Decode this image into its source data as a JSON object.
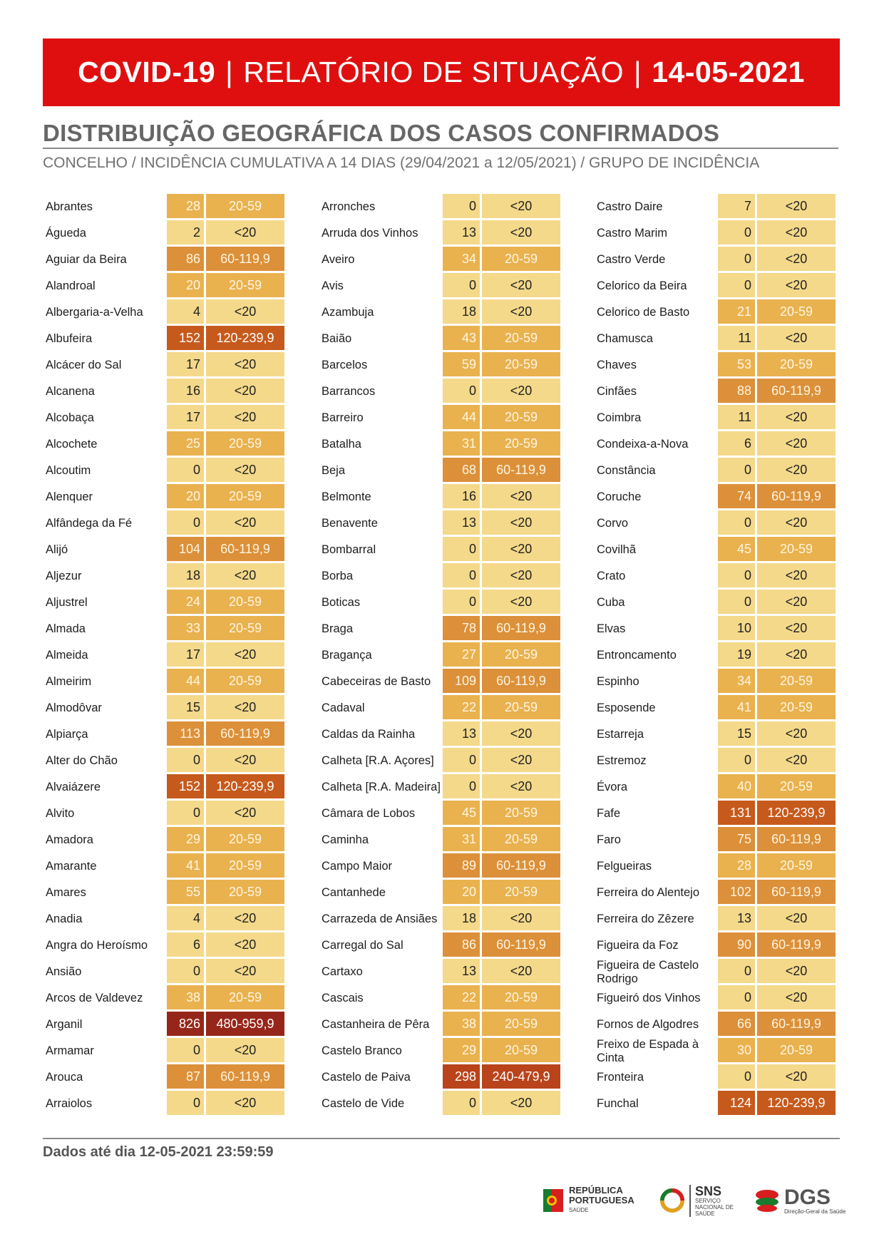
{
  "header": {
    "title_left": "COVID-19",
    "separator": "|",
    "title_mid": "RELATÓRIO DE SITUAÇÃO",
    "title_date": "14-05-2021"
  },
  "section": {
    "title": "DISTRIBUIÇÃO GEOGRÁFICA DOS CASOS CONFIRMADOS",
    "subtitle": "CONCELHO / INCIDÊNCIA CUMULATIVA A 14 DIAS (29/04/2021 a 12/05/2021) / GRUPO DE INCIDÊNCIA"
  },
  "colors": {
    "<20": "#f4d98a",
    "20-59": "#e9b24f",
    "60-119,9": "#dc903a",
    "120-239,9": "#c65a1c",
    "240-479,9": "#b9431a",
    "480-959,9": "#96261a"
  },
  "columns": [
    [
      [
        "Abrantes",
        "28",
        "20-59"
      ],
      [
        "Águeda",
        "2",
        "<20"
      ],
      [
        "Aguiar da Beira",
        "86",
        "60-119,9"
      ],
      [
        "Alandroal",
        "20",
        "20-59"
      ],
      [
        "Albergaria-a-Velha",
        "4",
        "<20"
      ],
      [
        "Albufeira",
        "152",
        "120-239,9"
      ],
      [
        "Alcácer do Sal",
        "17",
        "<20"
      ],
      [
        "Alcanena",
        "16",
        "<20"
      ],
      [
        "Alcobaça",
        "17",
        "<20"
      ],
      [
        "Alcochete",
        "25",
        "20-59"
      ],
      [
        "Alcoutim",
        "0",
        "<20"
      ],
      [
        "Alenquer",
        "20",
        "20-59"
      ],
      [
        "Alfândega da Fé",
        "0",
        "<20"
      ],
      [
        "Alijó",
        "104",
        "60-119,9"
      ],
      [
        "Aljezur",
        "18",
        "<20"
      ],
      [
        "Aljustrel",
        "24",
        "20-59"
      ],
      [
        "Almada",
        "33",
        "20-59"
      ],
      [
        "Almeida",
        "17",
        "<20"
      ],
      [
        "Almeirim",
        "44",
        "20-59"
      ],
      [
        "Almodôvar",
        "15",
        "<20"
      ],
      [
        "Alpiarça",
        "113",
        "60-119,9"
      ],
      [
        "Alter do Chão",
        "0",
        "<20"
      ],
      [
        "Alvaiázere",
        "152",
        "120-239,9"
      ],
      [
        "Alvito",
        "0",
        "<20"
      ],
      [
        "Amadora",
        "29",
        "20-59"
      ],
      [
        "Amarante",
        "41",
        "20-59"
      ],
      [
        "Amares",
        "55",
        "20-59"
      ],
      [
        "Anadia",
        "4",
        "<20"
      ],
      [
        "Angra do Heroísmo",
        "6",
        "<20"
      ],
      [
        "Ansião",
        "0",
        "<20"
      ],
      [
        "Arcos de Valdevez",
        "38",
        "20-59"
      ],
      [
        "Arganil",
        "826",
        "480-959,9"
      ],
      [
        "Armamar",
        "0",
        "<20"
      ],
      [
        "Arouca",
        "87",
        "60-119,9"
      ],
      [
        "Arraiolos",
        "0",
        "<20"
      ]
    ],
    [
      [
        "Arronches",
        "0",
        "<20"
      ],
      [
        "Arruda dos Vinhos",
        "13",
        "<20"
      ],
      [
        "Aveiro",
        "34",
        "20-59"
      ],
      [
        "Avis",
        "0",
        "<20"
      ],
      [
        "Azambuja",
        "18",
        "<20"
      ],
      [
        "Baião",
        "43",
        "20-59"
      ],
      [
        "Barcelos",
        "59",
        "20-59"
      ],
      [
        "Barrancos",
        "0",
        "<20"
      ],
      [
        "Barreiro",
        "44",
        "20-59"
      ],
      [
        "Batalha",
        "31",
        "20-59"
      ],
      [
        "Beja",
        "68",
        "60-119,9"
      ],
      [
        "Belmonte",
        "16",
        "<20"
      ],
      [
        "Benavente",
        "13",
        "<20"
      ],
      [
        "Bombarral",
        "0",
        "<20"
      ],
      [
        "Borba",
        "0",
        "<20"
      ],
      [
        "Boticas",
        "0",
        "<20"
      ],
      [
        "Braga",
        "78",
        "60-119,9"
      ],
      [
        "Bragança",
        "27",
        "20-59"
      ],
      [
        "Cabeceiras de Basto",
        "109",
        "60-119,9"
      ],
      [
        "Cadaval",
        "22",
        "20-59"
      ],
      [
        "Caldas da Rainha",
        "13",
        "<20"
      ],
      [
        "Calheta [R.A. Açores]",
        "0",
        "<20"
      ],
      [
        "Calheta [R.A. Madeira]",
        "0",
        "<20"
      ],
      [
        "Câmara de Lobos",
        "45",
        "20-59"
      ],
      [
        "Caminha",
        "31",
        "20-59"
      ],
      [
        "Campo Maior",
        "89",
        "60-119,9"
      ],
      [
        "Cantanhede",
        "20",
        "20-59"
      ],
      [
        "Carrazeda de Ansiães",
        "18",
        "<20"
      ],
      [
        "Carregal do Sal",
        "86",
        "60-119,9"
      ],
      [
        "Cartaxo",
        "13",
        "<20"
      ],
      [
        "Cascais",
        "22",
        "20-59"
      ],
      [
        "Castanheira de Pêra",
        "38",
        "20-59"
      ],
      [
        "Castelo Branco",
        "29",
        "20-59"
      ],
      [
        "Castelo de Paiva",
        "298",
        "240-479,9"
      ],
      [
        "Castelo de Vide",
        "0",
        "<20"
      ]
    ],
    [
      [
        "Castro Daire",
        "7",
        "<20"
      ],
      [
        "Castro Marim",
        "0",
        "<20"
      ],
      [
        "Castro Verde",
        "0",
        "<20"
      ],
      [
        "Celorico da Beira",
        "0",
        "<20"
      ],
      [
        "Celorico de Basto",
        "21",
        "20-59"
      ],
      [
        "Chamusca",
        "11",
        "<20"
      ],
      [
        "Chaves",
        "53",
        "20-59"
      ],
      [
        "Cinfães",
        "88",
        "60-119,9"
      ],
      [
        "Coimbra",
        "11",
        "<20"
      ],
      [
        "Condeixa-a-Nova",
        "6",
        "<20"
      ],
      [
        "Constância",
        "0",
        "<20"
      ],
      [
        "Coruche",
        "74",
        "60-119,9"
      ],
      [
        "Corvo",
        "0",
        "<20"
      ],
      [
        "Covilhã",
        "45",
        "20-59"
      ],
      [
        "Crato",
        "0",
        "<20"
      ],
      [
        "Cuba",
        "0",
        "<20"
      ],
      [
        "Elvas",
        "10",
        "<20"
      ],
      [
        "Entroncamento",
        "19",
        "<20"
      ],
      [
        "Espinho",
        "34",
        "20-59"
      ],
      [
        "Esposende",
        "41",
        "20-59"
      ],
      [
        "Estarreja",
        "15",
        "<20"
      ],
      [
        "Estremoz",
        "0",
        "<20"
      ],
      [
        "Évora",
        "40",
        "20-59"
      ],
      [
        "Fafe",
        "131",
        "120-239,9"
      ],
      [
        "Faro",
        "75",
        "60-119,9"
      ],
      [
        "Felgueiras",
        "28",
        "20-59"
      ],
      [
        "Ferreira do Alentejo",
        "102",
        "60-119,9"
      ],
      [
        "Ferreira do Zêzere",
        "13",
        "<20"
      ],
      [
        "Figueira da Foz",
        "90",
        "60-119,9"
      ],
      [
        "Figueira de Castelo Rodrigo",
        "0",
        "<20"
      ],
      [
        "Figueiró dos Vinhos",
        "0",
        "<20"
      ],
      [
        "Fornos de Algodres",
        "66",
        "60-119,9"
      ],
      [
        "Freixo de Espada à Cinta",
        "30",
        "20-59"
      ],
      [
        "Fronteira",
        "0",
        "<20"
      ],
      [
        "Funchal",
        "124",
        "120-239,9"
      ]
    ]
  ],
  "footer": {
    "data_note": "Dados até dia 12-05-2021 23:59:59"
  },
  "logos": {
    "republica_line1": "REPÚBLICA",
    "republica_line2": "PORTUGUESA",
    "republica_line3": "SAÚDE",
    "sns_title": "SNS",
    "sns_sub": "SERVIÇO NACIONAL DE SAÚDE",
    "dgs_title": "DGS",
    "dgs_sub": "Direção-Geral da Saúde"
  }
}
